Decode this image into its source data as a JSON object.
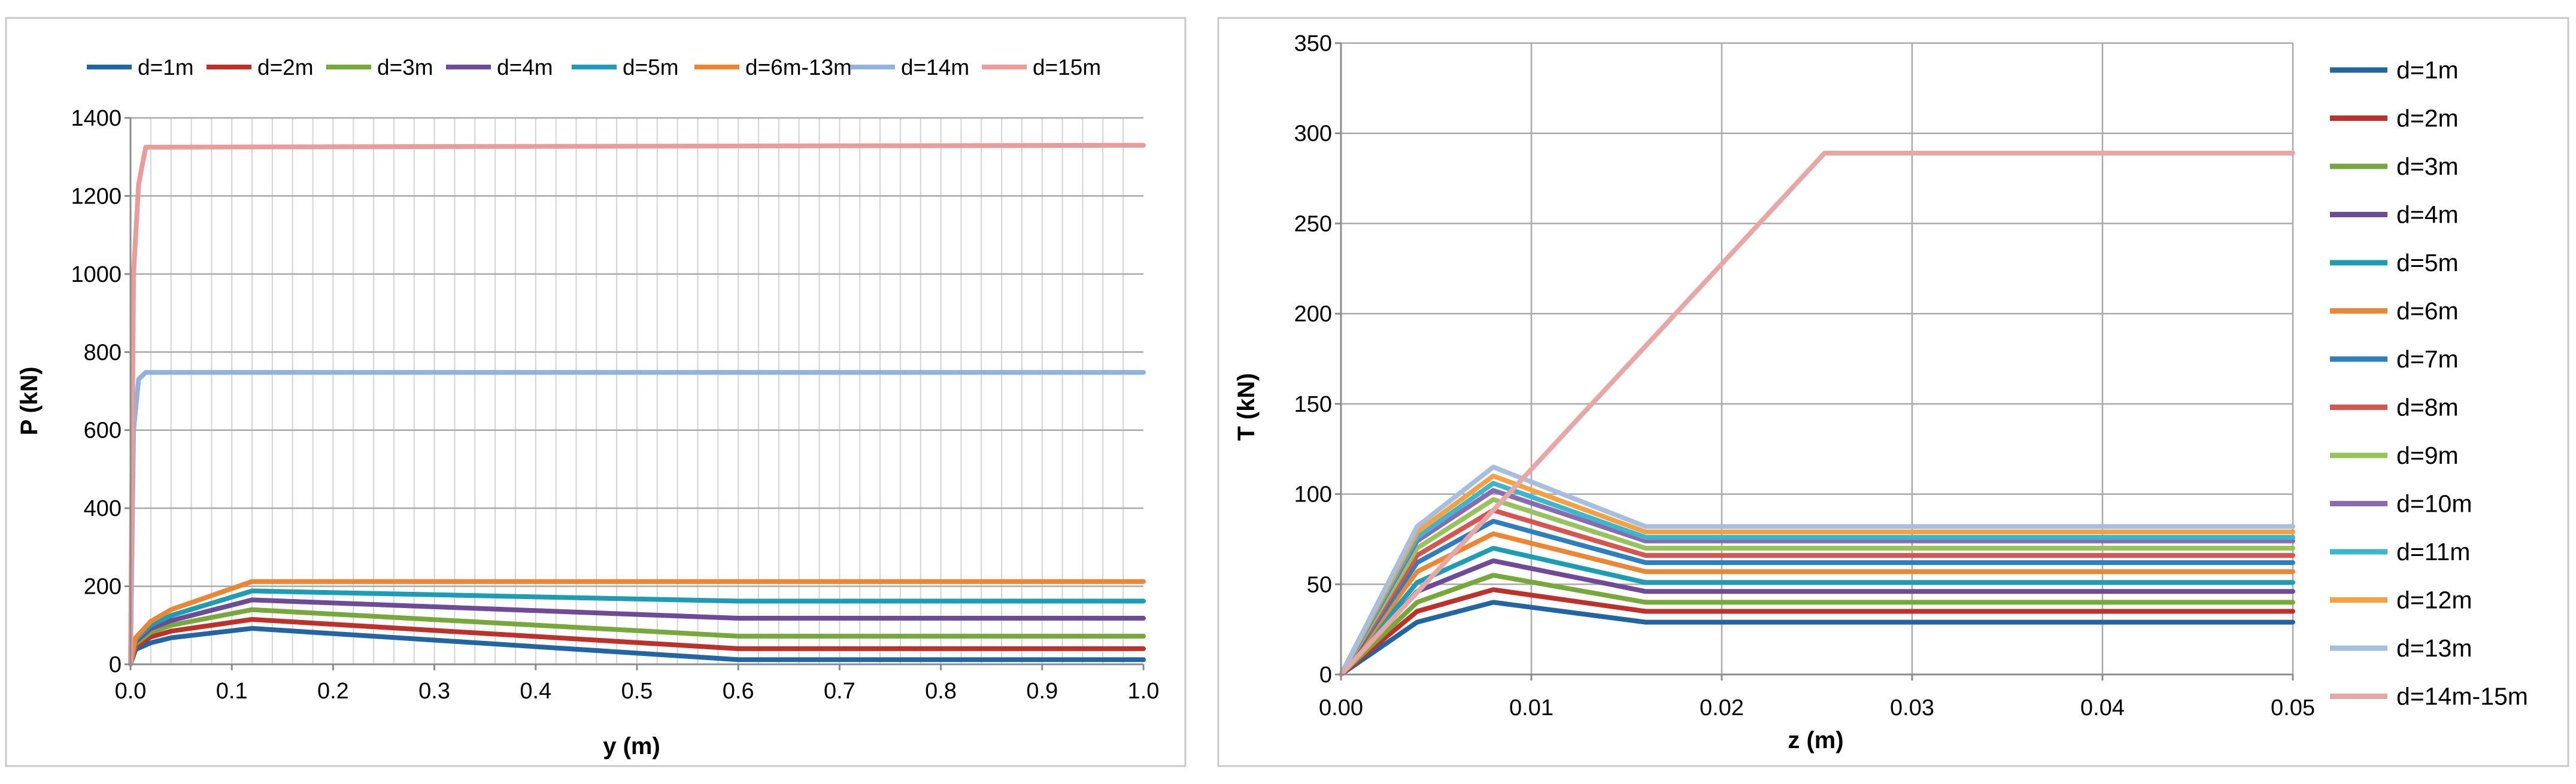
{
  "chart_data": [
    {
      "type": "line",
      "title": "",
      "xlabel": "y (m)",
      "ylabel": "P (kN)",
      "xlim": [
        0,
        1.0
      ],
      "ylim": [
        0,
        1400
      ],
      "xticks": [
        "0.0",
        "0.1",
        "0.2",
        "0.3",
        "0.4",
        "0.5",
        "0.6",
        "0.7",
        "0.8",
        "0.9",
        "1.0"
      ],
      "yticks": [
        "0",
        "200",
        "400",
        "600",
        "800",
        "1000",
        "1200",
        "1400"
      ],
      "grid": "on",
      "legend_position": "top",
      "series": [
        {
          "name": "d=1m",
          "color": "#2265a5",
          "x": [
            0,
            0.005,
            0.02,
            0.04,
            0.12,
            0.6,
            1.0
          ],
          "y": [
            0,
            38,
            55,
            68,
            92,
            12,
            12
          ]
        },
        {
          "name": "d=2m",
          "color": "#c0302b",
          "x": [
            0,
            0.005,
            0.02,
            0.04,
            0.12,
            0.6,
            1.0
          ],
          "y": [
            0,
            45,
            70,
            85,
            115,
            40,
            40
          ]
        },
        {
          "name": "d=3m",
          "color": "#77a83a",
          "x": [
            0,
            0.005,
            0.02,
            0.04,
            0.12,
            0.6,
            1.0
          ],
          "y": [
            0,
            52,
            82,
            100,
            140,
            72,
            72
          ]
        },
        {
          "name": "d=4m",
          "color": "#6e4a98",
          "x": [
            0,
            0.005,
            0.02,
            0.04,
            0.12,
            0.6,
            1.0
          ],
          "y": [
            0,
            58,
            92,
            112,
            165,
            118,
            118
          ]
        },
        {
          "name": "d=5m",
          "color": "#1b9db6",
          "x": [
            0,
            0.005,
            0.02,
            0.04,
            0.12,
            0.6,
            1.0
          ],
          "y": [
            0,
            63,
            100,
            125,
            188,
            162,
            162
          ]
        },
        {
          "name": "d=6m-13m",
          "color": "#ee8532",
          "x": [
            0,
            0.005,
            0.02,
            0.04,
            0.12,
            0.6,
            1.0
          ],
          "y": [
            0,
            68,
            110,
            140,
            212,
            212,
            212
          ]
        },
        {
          "name": "d=14m",
          "color": "#8eb3dc",
          "x": [
            0,
            0.003,
            0.008,
            0.015,
            1.0
          ],
          "y": [
            0,
            600,
            730,
            748,
            748
          ]
        },
        {
          "name": "d=15m",
          "color": "#e99c9a",
          "x": [
            0,
            0.003,
            0.008,
            0.015,
            1.0
          ],
          "y": [
            0,
            1000,
            1230,
            1325,
            1330
          ]
        }
      ]
    },
    {
      "type": "line",
      "title": "",
      "xlabel": "z (m)",
      "ylabel": "T (kN)",
      "xlim": [
        0,
        0.05
      ],
      "ylim": [
        0,
        350
      ],
      "xticks": [
        "0.00",
        "0.01",
        "0.02",
        "0.03",
        "0.04",
        "0.05"
      ],
      "yticks": [
        "0",
        "50",
        "100",
        "150",
        "200",
        "250",
        "300",
        "350"
      ],
      "grid": "on",
      "legend_position": "right",
      "series": [
        {
          "name": "d=1m",
          "color": "#2265a5",
          "x": [
            0,
            0.004,
            0.008,
            0.016,
            0.05
          ],
          "y": [
            0,
            29,
            40,
            29,
            29
          ]
        },
        {
          "name": "d=2m",
          "color": "#c0302b",
          "x": [
            0,
            0.004,
            0.008,
            0.016,
            0.05
          ],
          "y": [
            0,
            35,
            47,
            35,
            35
          ]
        },
        {
          "name": "d=3m",
          "color": "#77a83a",
          "x": [
            0,
            0.004,
            0.008,
            0.016,
            0.05
          ],
          "y": [
            0,
            40,
            55,
            40,
            40
          ]
        },
        {
          "name": "d=4m",
          "color": "#6e4a98",
          "x": [
            0,
            0.004,
            0.008,
            0.016,
            0.05
          ],
          "y": [
            0,
            46,
            63,
            46,
            46
          ]
        },
        {
          "name": "d=5m",
          "color": "#1b9db6",
          "x": [
            0,
            0.004,
            0.008,
            0.016,
            0.05
          ],
          "y": [
            0,
            51,
            70,
            51,
            51
          ]
        },
        {
          "name": "d=6m",
          "color": "#ee8532",
          "x": [
            0,
            0.004,
            0.008,
            0.016,
            0.05
          ],
          "y": [
            0,
            57,
            78,
            57,
            57
          ]
        },
        {
          "name": "d=7m",
          "color": "#2e7fbf",
          "x": [
            0,
            0.004,
            0.008,
            0.016,
            0.05
          ],
          "y": [
            0,
            62,
            85,
            62,
            62
          ]
        },
        {
          "name": "d=8m",
          "color": "#d9534f",
          "x": [
            0,
            0.004,
            0.008,
            0.016,
            0.05
          ],
          "y": [
            0,
            66,
            91,
            66,
            66
          ]
        },
        {
          "name": "d=9m",
          "color": "#96c45a",
          "x": [
            0,
            0.004,
            0.008,
            0.016,
            0.05
          ],
          "y": [
            0,
            70,
            97,
            70,
            70
          ]
        },
        {
          "name": "d=10m",
          "color": "#8b6bb0",
          "x": [
            0,
            0.004,
            0.008,
            0.016,
            0.05
          ],
          "y": [
            0,
            74,
            102,
            74,
            74
          ]
        },
        {
          "name": "d=11m",
          "color": "#3ab7cf",
          "x": [
            0,
            0.004,
            0.008,
            0.016,
            0.05
          ],
          "y": [
            0,
            76,
            106,
            76,
            76
          ]
        },
        {
          "name": "d=12m",
          "color": "#f7a040",
          "x": [
            0,
            0.004,
            0.008,
            0.016,
            0.05
          ],
          "y": [
            0,
            79,
            110,
            79,
            79
          ]
        },
        {
          "name": "d=13m",
          "color": "#a6bfdf",
          "x": [
            0,
            0.004,
            0.008,
            0.016,
            0.05
          ],
          "y": [
            0,
            82,
            115,
            82,
            82
          ]
        },
        {
          "name": "d=14m-15m",
          "color": "#e8a6a4",
          "x": [
            0,
            0.0254,
            0.05
          ],
          "y": [
            0,
            289,
            289
          ]
        }
      ]
    }
  ]
}
